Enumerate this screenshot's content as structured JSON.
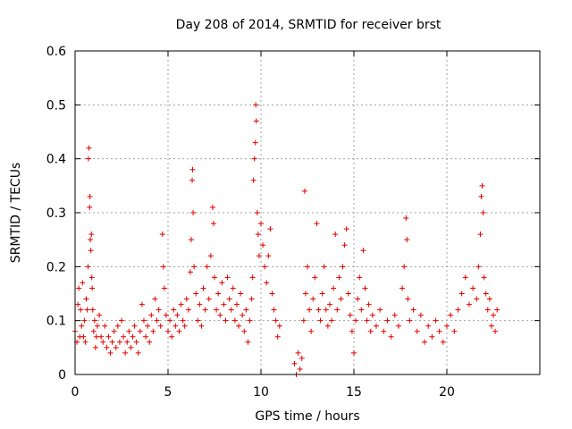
{
  "chart_data": {
    "type": "scatter",
    "title": "Day 208 of 2014, SRMTID for receiver brst",
    "xlabel": "GPS time / hours",
    "ylabel": "SRMTID / TECUs",
    "xlim": [
      0,
      25
    ],
    "ylim": [
      0,
      0.6
    ],
    "grid": true,
    "x_ticks": [
      0,
      5,
      10,
      15,
      20
    ],
    "x_tick_labels": [
      "0",
      "5",
      "10",
      "15",
      "20"
    ],
    "y_ticks": [
      0,
      0.1,
      0.2,
      0.3,
      0.4,
      0.5,
      0.6
    ],
    "y_tick_labels": [
      "0",
      "0.1",
      "0.2",
      "0.3",
      "0.4",
      "0.5",
      "0.6"
    ],
    "marker": "+",
    "color": "#e00000",
    "series": [
      {
        "name": "SRMTID",
        "points": [
          [
            0.0,
            0.08
          ],
          [
            0.1,
            0.06
          ],
          [
            0.15,
            0.13
          ],
          [
            0.2,
            0.16
          ],
          [
            0.25,
            0.07
          ],
          [
            0.3,
            0.12
          ],
          [
            0.35,
            0.09
          ],
          [
            0.4,
            0.17
          ],
          [
            0.45,
            0.07
          ],
          [
            0.5,
            0.1
          ],
          [
            0.55,
            0.06
          ],
          [
            0.6,
            0.14
          ],
          [
            0.65,
            0.12
          ],
          [
            0.7,
            0.2
          ],
          [
            0.72,
            0.4
          ],
          [
            0.75,
            0.42
          ],
          [
            0.78,
            0.31
          ],
          [
            0.8,
            0.33
          ],
          [
            0.82,
            0.25
          ],
          [
            0.85,
            0.23
          ],
          [
            0.88,
            0.26
          ],
          [
            0.9,
            0.18
          ],
          [
            0.92,
            0.16
          ],
          [
            0.95,
            0.12
          ],
          [
            1.0,
            0.08
          ],
          [
            1.05,
            0.1
          ],
          [
            1.1,
            0.05
          ],
          [
            1.15,
            0.07
          ],
          [
            1.2,
            0.09
          ],
          [
            1.3,
            0.11
          ],
          [
            1.4,
            0.07
          ],
          [
            1.5,
            0.06
          ],
          [
            1.6,
            0.09
          ],
          [
            1.7,
            0.05
          ],
          [
            1.8,
            0.07
          ],
          [
            1.9,
            0.04
          ],
          [
            2.0,
            0.06
          ],
          [
            2.1,
            0.08
          ],
          [
            2.2,
            0.05
          ],
          [
            2.3,
            0.09
          ],
          [
            2.4,
            0.06
          ],
          [
            2.5,
            0.1
          ],
          [
            2.6,
            0.07
          ],
          [
            2.7,
            0.04
          ],
          [
            2.8,
            0.06
          ],
          [
            2.9,
            0.08
          ],
          [
            3.0,
            0.05
          ],
          [
            3.1,
            0.07
          ],
          [
            3.2,
            0.09
          ],
          [
            3.3,
            0.06
          ],
          [
            3.4,
            0.04
          ],
          [
            3.5,
            0.08
          ],
          [
            3.6,
            0.13
          ],
          [
            3.7,
            0.1
          ],
          [
            3.8,
            0.07
          ],
          [
            3.9,
            0.09
          ],
          [
            4.0,
            0.06
          ],
          [
            4.1,
            0.11
          ],
          [
            4.2,
            0.08
          ],
          [
            4.3,
            0.14
          ],
          [
            4.4,
            0.1
          ],
          [
            4.5,
            0.12
          ],
          [
            4.6,
            0.09
          ],
          [
            4.7,
            0.26
          ],
          [
            4.75,
            0.2
          ],
          [
            4.8,
            0.16
          ],
          [
            4.9,
            0.11
          ],
          [
            5.0,
            0.08
          ],
          [
            5.1,
            0.1
          ],
          [
            5.2,
            0.07
          ],
          [
            5.3,
            0.12
          ],
          [
            5.4,
            0.09
          ],
          [
            5.5,
            0.11
          ],
          [
            5.6,
            0.08
          ],
          [
            5.7,
            0.13
          ],
          [
            5.8,
            0.1
          ],
          [
            5.9,
            0.09
          ],
          [
            6.0,
            0.14
          ],
          [
            6.1,
            0.12
          ],
          [
            6.2,
            0.19
          ],
          [
            6.25,
            0.25
          ],
          [
            6.3,
            0.36
          ],
          [
            6.32,
            0.38
          ],
          [
            6.35,
            0.3
          ],
          [
            6.4,
            0.2
          ],
          [
            6.5,
            0.15
          ],
          [
            6.6,
            0.1
          ],
          [
            6.7,
            0.13
          ],
          [
            6.8,
            0.09
          ],
          [
            6.9,
            0.16
          ],
          [
            7.0,
            0.12
          ],
          [
            7.1,
            0.2
          ],
          [
            7.2,
            0.14
          ],
          [
            7.3,
            0.22
          ],
          [
            7.4,
            0.31
          ],
          [
            7.45,
            0.28
          ],
          [
            7.5,
            0.18
          ],
          [
            7.6,
            0.12
          ],
          [
            7.7,
            0.15
          ],
          [
            7.8,
            0.11
          ],
          [
            7.9,
            0.17
          ],
          [
            8.0,
            0.13
          ],
          [
            8.1,
            0.1
          ],
          [
            8.2,
            0.18
          ],
          [
            8.3,
            0.14
          ],
          [
            8.4,
            0.12
          ],
          [
            8.5,
            0.16
          ],
          [
            8.6,
            0.1
          ],
          [
            8.7,
            0.13
          ],
          [
            8.8,
            0.09
          ],
          [
            8.9,
            0.15
          ],
          [
            9.0,
            0.11
          ],
          [
            9.1,
            0.08
          ],
          [
            9.2,
            0.12
          ],
          [
            9.3,
            0.06
          ],
          [
            9.4,
            0.1
          ],
          [
            9.5,
            0.14
          ],
          [
            9.55,
            0.18
          ],
          [
            9.6,
            0.36
          ],
          [
            9.65,
            0.4
          ],
          [
            9.7,
            0.43
          ],
          [
            9.72,
            0.5
          ],
          [
            9.75,
            0.47
          ],
          [
            9.8,
            0.3
          ],
          [
            9.85,
            0.26
          ],
          [
            9.9,
            0.22
          ],
          [
            10.0,
            0.28
          ],
          [
            10.1,
            0.24
          ],
          [
            10.2,
            0.2
          ],
          [
            10.3,
            0.17
          ],
          [
            10.4,
            0.22
          ],
          [
            10.5,
            0.27
          ],
          [
            10.6,
            0.15
          ],
          [
            10.7,
            0.12
          ],
          [
            10.8,
            0.1
          ],
          [
            10.9,
            0.07
          ],
          [
            11.0,
            0.09
          ],
          [
            11.8,
            0.02
          ],
          [
            11.9,
            0.0
          ],
          [
            12.0,
            0.04
          ],
          [
            12.1,
            0.01
          ],
          [
            12.2,
            0.03
          ],
          [
            12.3,
            0.1
          ],
          [
            12.35,
            0.34
          ],
          [
            12.4,
            0.15
          ],
          [
            12.5,
            0.2
          ],
          [
            12.6,
            0.12
          ],
          [
            12.7,
            0.08
          ],
          [
            12.8,
            0.14
          ],
          [
            12.9,
            0.18
          ],
          [
            13.0,
            0.28
          ],
          [
            13.1,
            0.12
          ],
          [
            13.2,
            0.1
          ],
          [
            13.3,
            0.15
          ],
          [
            13.4,
            0.2
          ],
          [
            13.5,
            0.12
          ],
          [
            13.6,
            0.09
          ],
          [
            13.7,
            0.13
          ],
          [
            13.8,
            0.1
          ],
          [
            13.9,
            0.16
          ],
          [
            14.0,
            0.26
          ],
          [
            14.1,
            0.12
          ],
          [
            14.2,
            0.18
          ],
          [
            14.3,
            0.14
          ],
          [
            14.4,
            0.2
          ],
          [
            14.5,
            0.24
          ],
          [
            14.6,
            0.27
          ],
          [
            14.7,
            0.15
          ],
          [
            14.8,
            0.11
          ],
          [
            14.9,
            0.08
          ],
          [
            15.0,
            0.04
          ],
          [
            15.1,
            0.1
          ],
          [
            15.2,
            0.14
          ],
          [
            15.3,
            0.18
          ],
          [
            15.4,
            0.12
          ],
          [
            15.5,
            0.23
          ],
          [
            15.6,
            0.16
          ],
          [
            15.7,
            0.1
          ],
          [
            15.8,
            0.13
          ],
          [
            15.9,
            0.08
          ],
          [
            16.0,
            0.11
          ],
          [
            16.2,
            0.09
          ],
          [
            16.4,
            0.12
          ],
          [
            16.6,
            0.08
          ],
          [
            16.8,
            0.1
          ],
          [
            17.0,
            0.07
          ],
          [
            17.2,
            0.11
          ],
          [
            17.4,
            0.09
          ],
          [
            17.6,
            0.16
          ],
          [
            17.7,
            0.2
          ],
          [
            17.8,
            0.29
          ],
          [
            17.85,
            0.25
          ],
          [
            17.9,
            0.14
          ],
          [
            18.0,
            0.1
          ],
          [
            18.2,
            0.12
          ],
          [
            18.4,
            0.08
          ],
          [
            18.6,
            0.11
          ],
          [
            18.8,
            0.06
          ],
          [
            19.0,
            0.09
          ],
          [
            19.2,
            0.07
          ],
          [
            19.4,
            0.1
          ],
          [
            19.6,
            0.08
          ],
          [
            19.8,
            0.06
          ],
          [
            20.0,
            0.09
          ],
          [
            20.2,
            0.11
          ],
          [
            20.4,
            0.08
          ],
          [
            20.6,
            0.12
          ],
          [
            20.8,
            0.15
          ],
          [
            21.0,
            0.18
          ],
          [
            21.2,
            0.13
          ],
          [
            21.4,
            0.16
          ],
          [
            21.6,
            0.14
          ],
          [
            21.7,
            0.2
          ],
          [
            21.8,
            0.26
          ],
          [
            21.85,
            0.33
          ],
          [
            21.9,
            0.35
          ],
          [
            21.95,
            0.3
          ],
          [
            22.0,
            0.18
          ],
          [
            22.1,
            0.15
          ],
          [
            22.2,
            0.12
          ],
          [
            22.3,
            0.14
          ],
          [
            22.4,
            0.09
          ],
          [
            22.5,
            0.11
          ],
          [
            22.6,
            0.08
          ],
          [
            22.7,
            0.12
          ]
        ]
      }
    ]
  }
}
